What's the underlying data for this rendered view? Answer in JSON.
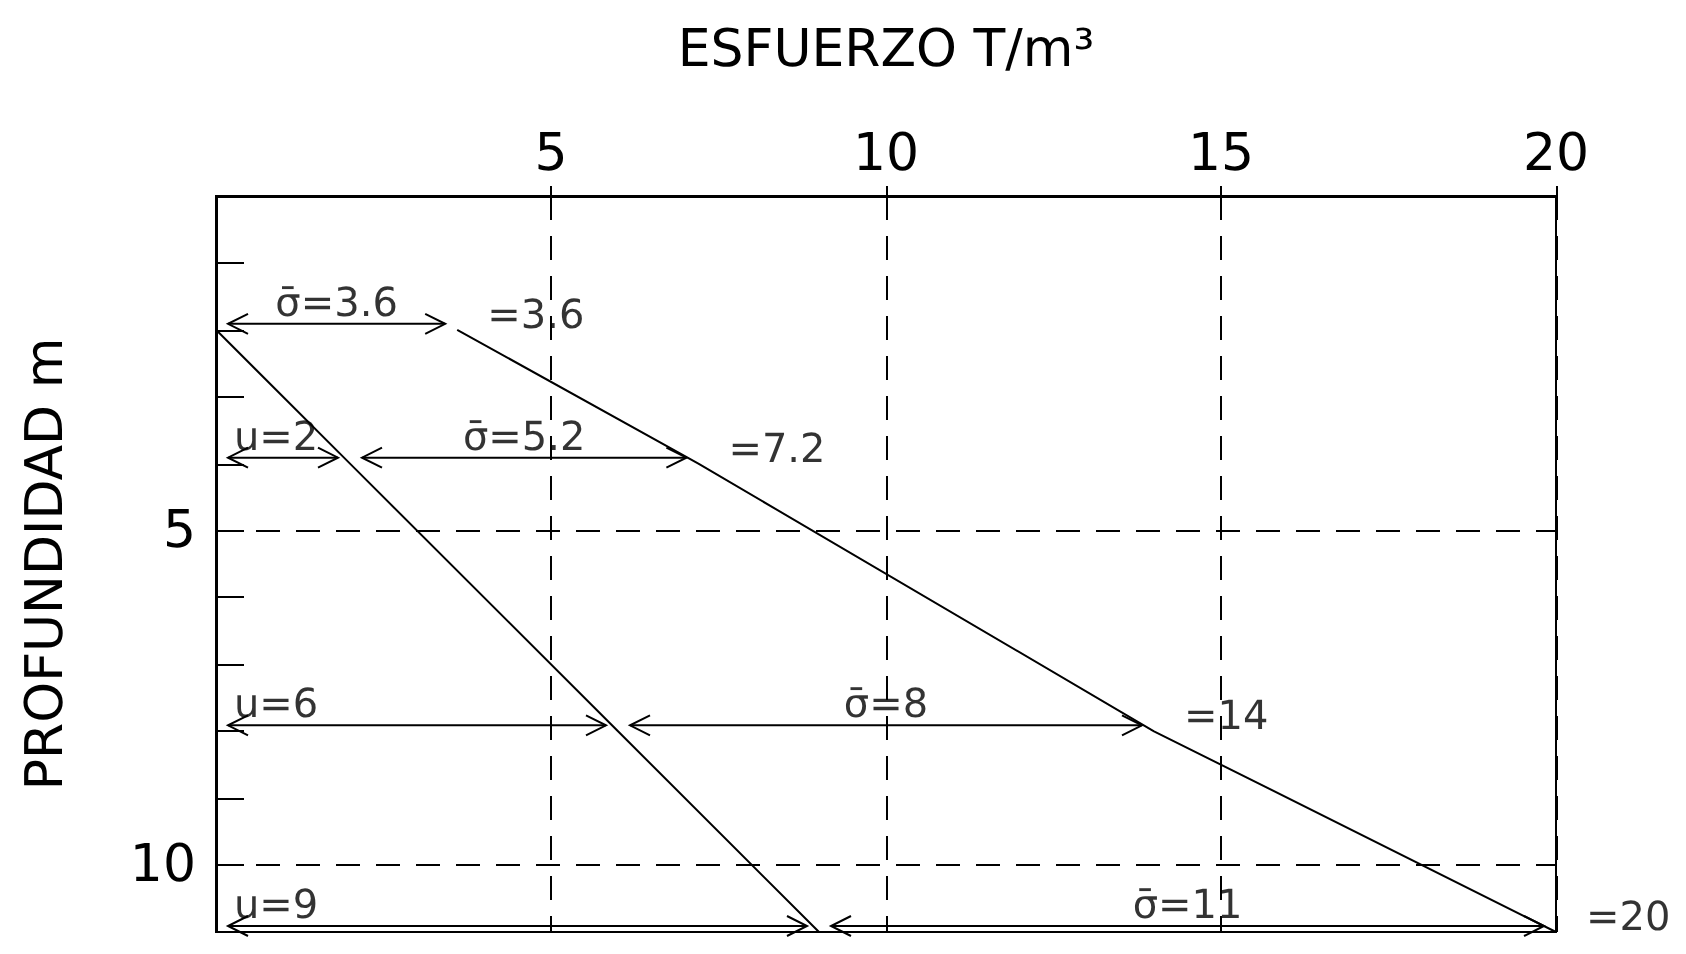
{
  "chart_data": {
    "type": "line",
    "xlabel": "ESFUERZO T/m³",
    "ylabel": "PROFUNDIDAD m",
    "xlim": [
      0,
      20
    ],
    "xticks": [
      5,
      10,
      15,
      20
    ],
    "ylim": [
      11,
      0
    ],
    "yticks": [
      {
        "value": 1,
        "label": null
      },
      {
        "value": 2,
        "label": null
      },
      {
        "value": 3,
        "label": null
      },
      {
        "value": 4,
        "label": null
      },
      5,
      {
        "value": 6,
        "label": null
      },
      {
        "value": 7,
        "label": null
      },
      {
        "value": 8,
        "label": null
      },
      {
        "value": 9,
        "label": null
      },
      10
    ],
    "grid": true,
    "marker": "none",
    "line_style": "solid",
    "series": [
      {
        "color": "#000000",
        "x": [
          0,
          2,
          6,
          9
        ],
        "values": [
          2,
          4,
          8,
          11
        ]
      },
      {
        "color": "#000000",
        "x": [
          3.6,
          7.2,
          14,
          20
        ],
        "values": [
          2,
          4,
          8,
          11
        ]
      }
    ],
    "annotations": [
      "σ̄=3.6",
      "σ̄=5.2",
      "σ̄=8",
      "σ̄=11",
      {
        "text": "u=2",
        "x": 2,
        "y": 4
      },
      {
        "text": "u=6",
        "x": 6,
        "y": 8
      },
      {
        "text": "u=9",
        "x": 9,
        "y": 11
      },
      {
        "text": "=3.6",
        "x": 3.6,
        "y": 2
      },
      {
        "text": "=7.2",
        "x": 7.2,
        "y": 4
      },
      {
        "text": "=14",
        "x": 14,
        "y": 8
      },
      {
        "text": "=20",
        "x": 20,
        "y": 11
      }
    ]
  }
}
